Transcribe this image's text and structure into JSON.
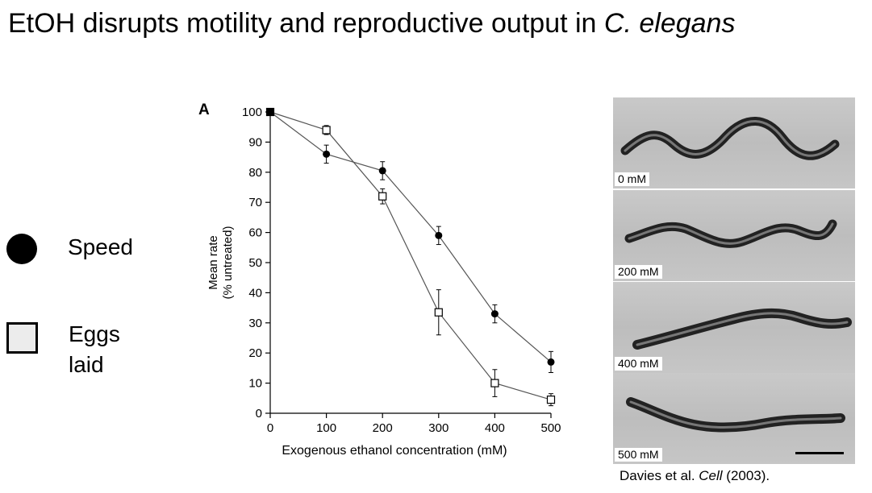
{
  "slide": {
    "title_main": "EtOH disrupts motility and reproductive output in ",
    "title_species": "C. elegans"
  },
  "legend": {
    "speed_label": "Speed",
    "eggs_label": "Eggs laid"
  },
  "chart_data": {
    "type": "line",
    "panel_label": "A",
    "xlabel": "Exogenous ethanol concentration (mM)",
    "ylabel_line1": "Mean rate",
    "ylabel_line2": "(% untreated)",
    "xlim": [
      0,
      500
    ],
    "ylim": [
      0,
      100
    ],
    "x_ticks": [
      0,
      100,
      200,
      300,
      400,
      500
    ],
    "y_ticks": [
      0,
      10,
      20,
      30,
      40,
      50,
      60,
      70,
      80,
      90,
      100
    ],
    "grid": false,
    "legend_position": "left, outside plot",
    "series": [
      {
        "name": "Speed",
        "marker": "filled-circle",
        "x": [
          0,
          100,
          200,
          300,
          400,
          500
        ],
        "y": [
          100,
          86,
          80.5,
          59,
          33,
          17
        ],
        "err": [
          0,
          3,
          3,
          3,
          3,
          3.5
        ]
      },
      {
        "name": "Eggs laid",
        "marker": "open-square",
        "x": [
          0,
          100,
          200,
          300,
          400,
          500
        ],
        "y": [
          100,
          94,
          72,
          33.5,
          10,
          4.5
        ],
        "err": [
          0,
          1.5,
          2.5,
          7.5,
          4.5,
          2
        ]
      }
    ]
  },
  "photos": [
    {
      "label": "0 mM"
    },
    {
      "label": "200 mM"
    },
    {
      "label": "400 mM"
    },
    {
      "label": "500 mM"
    }
  ],
  "citation": {
    "prefix": "Davies et al. ",
    "journal": "Cell",
    "suffix": " (2003)."
  }
}
